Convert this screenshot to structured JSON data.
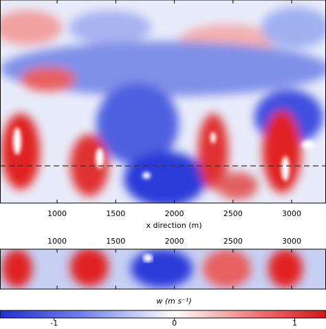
{
  "chart_data": {
    "type": "heatmap",
    "xlabel": "x direction (m)",
    "xlim": [
      513,
      3293
    ],
    "xticks": [
      1000,
      1500,
      2000,
      2500,
      3000
    ],
    "colorbar": {
      "label": "w (m s⁻¹)",
      "lim": [
        -1.45,
        1.26
      ],
      "ticks": [
        {
          "value": -1,
          "label": "-1"
        },
        0,
        1
      ]
    }
  }
}
